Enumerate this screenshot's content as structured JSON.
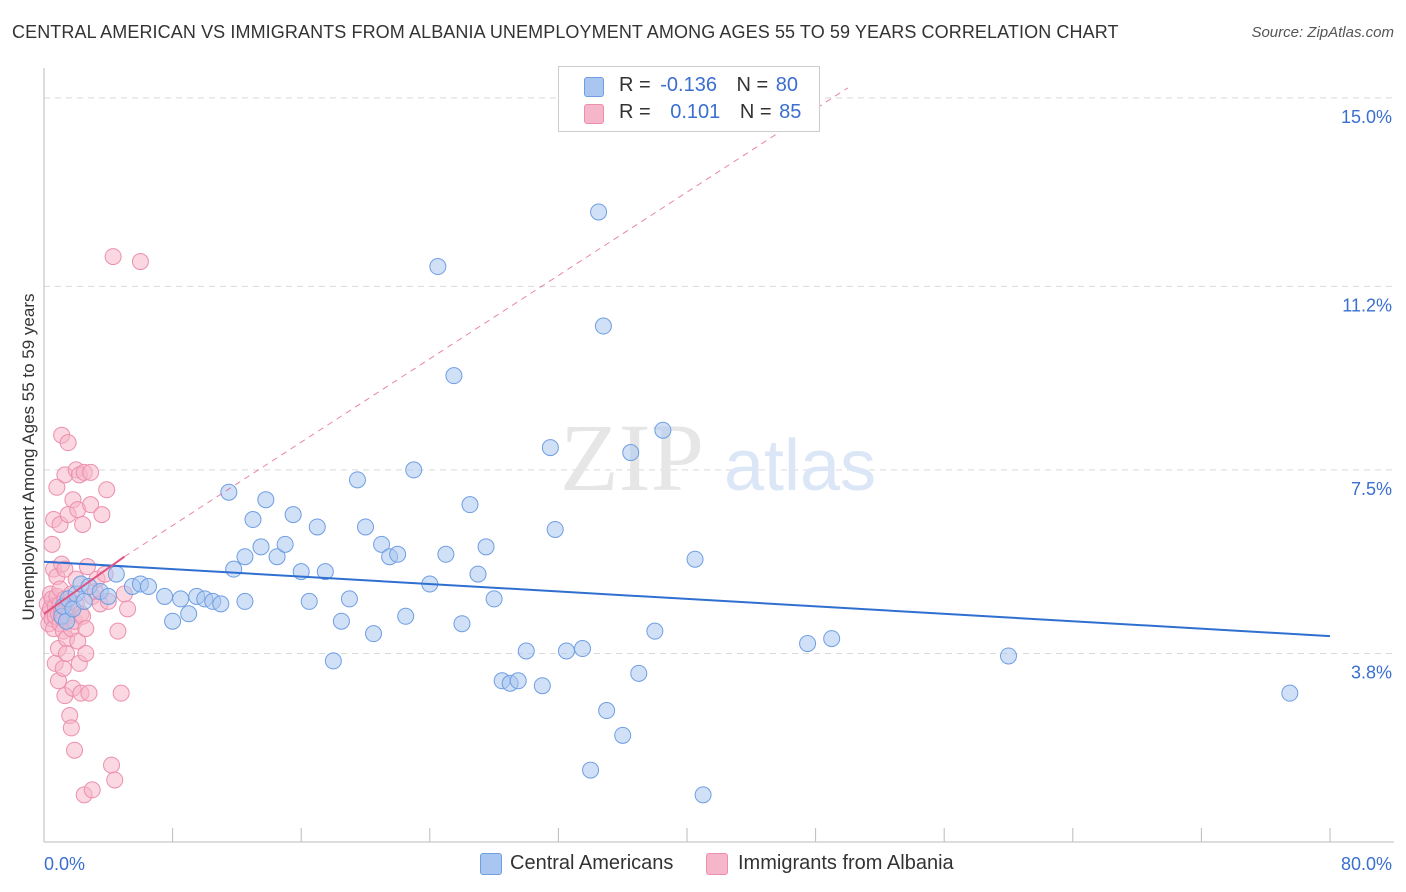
{
  "title": "CENTRAL AMERICAN VS IMMIGRANTS FROM ALBANIA UNEMPLOYMENT AMONG AGES 55 TO 59 YEARS CORRELATION CHART",
  "source": "Source: ZipAtlas.com",
  "watermark": {
    "zip": "ZIP",
    "atlas": "atlas"
  },
  "legend": {
    "series1": {
      "r_label": "R =",
      "r_value": "-0.136",
      "n_label": "N =",
      "n_value": "80"
    },
    "series2": {
      "r_label": "R =",
      "r_value": "0.101",
      "n_label": "N =",
      "n_value": "85"
    }
  },
  "colors": {
    "blue_fill": "#a9c6f0",
    "blue_stroke": "#6f9ee2",
    "blue_line": "#2f6fcf",
    "pink_fill": "#f6b6c9",
    "pink_stroke": "#ec8fae",
    "pink_line": "#e0527f",
    "tick_text": "#3a6fd0",
    "grid": "#d9d9d9"
  },
  "chart_data": {
    "type": "scatter",
    "title": "CENTRAL AMERICAN VS IMMIGRANTS FROM ALBANIA UNEMPLOYMENT AMONG AGES 55 TO 59 YEARS CORRELATION CHART",
    "xlabel": "",
    "ylabel": "Unemployment Among Ages 55 to 59 years",
    "xlim": [
      0,
      80
    ],
    "ylim": [
      0,
      15.4
    ],
    "x_tick_labels": [
      "0.0%",
      "80.0%"
    ],
    "y_ticks": [
      3.8,
      7.5,
      11.2,
      15.0
    ],
    "y_tick_labels": [
      "3.8%",
      "7.5%",
      "11.2%",
      "15.0%"
    ],
    "grid": true,
    "legend_position": "top-center",
    "series": [
      {
        "name": "Central Americans",
        "color": "#a9c6f0",
        "r": -0.136,
        "n": 80,
        "trend": {
          "x0": 0,
          "y0": 5.65,
          "x1": 80,
          "y1": 4.15
        },
        "points": [
          [
            1.1,
            4.55
          ],
          [
            1.2,
            4.75
          ],
          [
            1.4,
            4.45
          ],
          [
            1.5,
            4.9
          ],
          [
            1.8,
            4.7
          ],
          [
            2.0,
            5.0
          ],
          [
            2.3,
            5.2
          ],
          [
            2.5,
            4.85
          ],
          [
            2.8,
            5.15
          ],
          [
            3.5,
            5.05
          ],
          [
            4.0,
            4.95
          ],
          [
            4.5,
            5.4
          ],
          [
            5.5,
            5.15
          ],
          [
            6.0,
            5.2
          ],
          [
            6.5,
            5.15
          ],
          [
            7.5,
            4.95
          ],
          [
            8.0,
            4.45
          ],
          [
            8.5,
            4.9
          ],
          [
            9.0,
            4.6
          ],
          [
            9.5,
            4.95
          ],
          [
            10.0,
            4.9
          ],
          [
            10.5,
            4.85
          ],
          [
            11.0,
            4.8
          ],
          [
            11.5,
            7.05
          ],
          [
            11.8,
            5.5
          ],
          [
            12.5,
            4.85
          ],
          [
            12.5,
            5.75
          ],
          [
            13.0,
            6.5
          ],
          [
            13.5,
            5.95
          ],
          [
            13.8,
            6.9
          ],
          [
            14.5,
            5.75
          ],
          [
            15.0,
            6.0
          ],
          [
            15.5,
            6.6
          ],
          [
            16.0,
            5.45
          ],
          [
            16.5,
            4.85
          ],
          [
            17.0,
            6.35
          ],
          [
            17.5,
            5.45
          ],
          [
            18.0,
            3.65
          ],
          [
            18.5,
            4.45
          ],
          [
            19.0,
            4.9
          ],
          [
            19.5,
            7.3
          ],
          [
            20.0,
            6.35
          ],
          [
            20.5,
            4.2
          ],
          [
            21.0,
            6.0
          ],
          [
            21.5,
            5.75
          ],
          [
            22.0,
            5.8
          ],
          [
            22.5,
            4.55
          ],
          [
            23.0,
            7.5
          ],
          [
            24.0,
            5.2
          ],
          [
            24.5,
            11.6
          ],
          [
            25.0,
            5.8
          ],
          [
            25.5,
            9.4
          ],
          [
            26.0,
            4.4
          ],
          [
            26.5,
            6.8
          ],
          [
            27.0,
            5.4
          ],
          [
            27.5,
            5.95
          ],
          [
            28.0,
            4.9
          ],
          [
            28.5,
            3.25
          ],
          [
            29.0,
            3.2
          ],
          [
            29.5,
            3.25
          ],
          [
            30.0,
            3.85
          ],
          [
            31.0,
            3.15
          ],
          [
            31.5,
            7.95
          ],
          [
            31.8,
            6.3
          ],
          [
            32.5,
            3.85
          ],
          [
            33.5,
            3.9
          ],
          [
            34.0,
            1.45
          ],
          [
            34.5,
            12.7
          ],
          [
            34.8,
            10.4
          ],
          [
            35.0,
            2.65
          ],
          [
            36.0,
            2.15
          ],
          [
            36.5,
            7.85
          ],
          [
            37.0,
            3.4
          ],
          [
            38.0,
            4.25
          ],
          [
            38.5,
            8.3
          ],
          [
            40.5,
            5.7
          ],
          [
            41.0,
            0.95
          ],
          [
            47.5,
            4.0
          ],
          [
            49.0,
            4.1
          ],
          [
            60.0,
            3.75
          ],
          [
            77.5,
            3.0
          ]
        ]
      },
      {
        "name": "Immigrants from Albania",
        "color": "#f6b6c9",
        "r": 0.101,
        "n": 85,
        "trend": {
          "x0": 0,
          "y0": 4.6,
          "x1": 5.0,
          "y1": 5.75,
          "dash_to_x": 50,
          "dash_to_y": 15.2
        },
        "points": [
          [
            0.2,
            4.8
          ],
          [
            0.3,
            4.6
          ],
          [
            0.3,
            4.4
          ],
          [
            0.4,
            5.0
          ],
          [
            0.4,
            4.7
          ],
          [
            0.5,
            6.0
          ],
          [
            0.5,
            4.5
          ],
          [
            0.5,
            4.9
          ],
          [
            0.6,
            6.5
          ],
          [
            0.6,
            4.3
          ],
          [
            0.6,
            5.5
          ],
          [
            0.7,
            4.75
          ],
          [
            0.7,
            4.55
          ],
          [
            0.7,
            3.6
          ],
          [
            0.8,
            4.95
          ],
          [
            0.8,
            5.35
          ],
          [
            0.8,
            7.15
          ],
          [
            0.9,
            4.6
          ],
          [
            0.9,
            3.9
          ],
          [
            0.9,
            3.25
          ],
          [
            1.0,
            4.8
          ],
          [
            1.0,
            4.4
          ],
          [
            1.0,
            5.1
          ],
          [
            1.0,
            6.4
          ],
          [
            1.1,
            4.65
          ],
          [
            1.1,
            5.6
          ],
          [
            1.1,
            8.2
          ],
          [
            1.2,
            4.5
          ],
          [
            1.2,
            4.25
          ],
          [
            1.2,
            3.5
          ],
          [
            1.3,
            4.9
          ],
          [
            1.3,
            5.5
          ],
          [
            1.3,
            7.4
          ],
          [
            1.3,
            2.95
          ],
          [
            1.4,
            4.7
          ],
          [
            1.4,
            4.1
          ],
          [
            1.4,
            3.8
          ],
          [
            1.5,
            8.05
          ],
          [
            1.5,
            4.55
          ],
          [
            1.5,
            6.6
          ],
          [
            1.6,
            4.85
          ],
          [
            1.6,
            2.55
          ],
          [
            1.7,
            5.0
          ],
          [
            1.7,
            4.3
          ],
          [
            1.7,
            2.3
          ],
          [
            1.8,
            6.9
          ],
          [
            1.8,
            3.1
          ],
          [
            1.9,
            4.45
          ],
          [
            1.9,
            1.85
          ],
          [
            2.0,
            7.5
          ],
          [
            2.0,
            4.8
          ],
          [
            2.0,
            5.3
          ],
          [
            2.1,
            6.7
          ],
          [
            2.1,
            4.05
          ],
          [
            2.2,
            7.4
          ],
          [
            2.2,
            3.6
          ],
          [
            2.3,
            4.6
          ],
          [
            2.3,
            3.0
          ],
          [
            2.4,
            4.55
          ],
          [
            2.4,
            6.4
          ],
          [
            2.5,
            7.45
          ],
          [
            2.5,
            0.95
          ],
          [
            2.6,
            4.3
          ],
          [
            2.6,
            3.8
          ],
          [
            2.7,
            5.55
          ],
          [
            2.8,
            3.0
          ],
          [
            2.9,
            7.45
          ],
          [
            2.9,
            6.8
          ],
          [
            3.0,
            4.95
          ],
          [
            3.0,
            1.05
          ],
          [
            3.2,
            5.05
          ],
          [
            3.3,
            5.3
          ],
          [
            3.5,
            4.8
          ],
          [
            3.6,
            6.6
          ],
          [
            3.8,
            5.4
          ],
          [
            3.9,
            7.1
          ],
          [
            4.0,
            4.85
          ],
          [
            4.2,
            1.55
          ],
          [
            4.3,
            11.8
          ],
          [
            4.4,
            1.25
          ],
          [
            4.6,
            4.25
          ],
          [
            4.8,
            3.0
          ],
          [
            5.0,
            5.0
          ],
          [
            5.2,
            4.7
          ],
          [
            6.0,
            11.7
          ]
        ]
      }
    ]
  },
  "bottom_legend": {
    "series1_label": "Central Americans",
    "series2_label": "Immigrants from Albania"
  }
}
